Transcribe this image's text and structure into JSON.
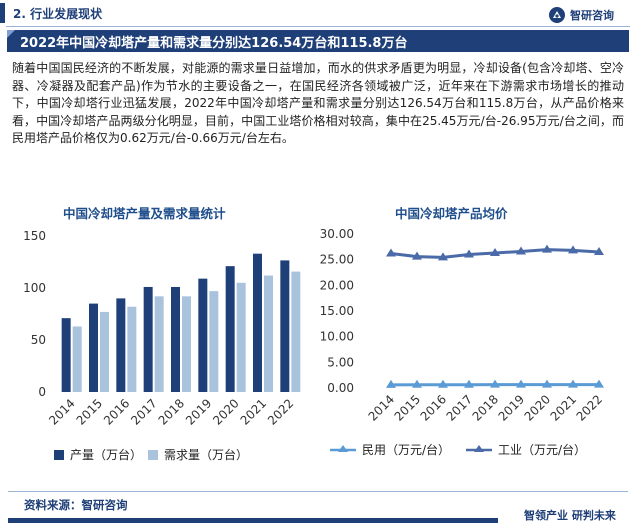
{
  "header": {
    "section_title": "2. 行业发展现状",
    "logo_text": "智研咨询"
  },
  "banner": {
    "title": "2022年中国冷却塔产量和需求量分别达126.54万台和115.8万台"
  },
  "paragraph": "随着中国国民经济的不断发展，对能源的需求量日益增加，而水的供求矛盾更为明显，冷却设备(包含冷却塔、空冷器、冷凝器及配套产品)作为节水的主要设备之一，在国民经济各领域被广泛，近年来在下游需求市场增长的推动下，中国冷却塔行业迅猛发展，2022年中国冷却塔产量和需求量分别达126.54万台和115.8万台，从产品价格来看，中国冷却塔产品两级分化明显，目前，中国工业塔价格相对较高，集中在25.45万元/台-26.95万元/台之间，而民用塔产品价格仅为0.62万元/台-0.66万元/台左右。",
  "footer": {
    "source": "资料来源：智研咨询",
    "tagline": "智领产业  研判未来"
  },
  "colors": {
    "brand": "#1f3f78",
    "production": "#1f3f78",
    "demand": "#a9c3dc",
    "civil": "#5b9bd5",
    "industrial": "#4a6aa8"
  },
  "chart_data": [
    {
      "type": "bar",
      "title": "中国冷却塔产量及需求量统计",
      "categories": [
        "2014",
        "2015",
        "2016",
        "2017",
        "2018",
        "2019",
        "2020",
        "2021",
        "2022"
      ],
      "series": [
        {
          "name": "产量（万台）",
          "values": [
            71,
            85,
            90,
            101,
            101,
            109,
            121,
            133,
            126.54
          ]
        },
        {
          "name": "需求量（万台）",
          "values": [
            63,
            77,
            82,
            92,
            92,
            97,
            105,
            112,
            115.8
          ]
        }
      ],
      "ylim": [
        0,
        150
      ],
      "yticks": [
        "0",
        "50",
        "100",
        "150"
      ],
      "grid": false,
      "legend": "bottom"
    },
    {
      "type": "line",
      "title": "中国冷却塔产品均价",
      "categories": [
        "2014",
        "2015",
        "2016",
        "2017",
        "2018",
        "2019",
        "2020",
        "2021",
        "2022"
      ],
      "series": [
        {
          "name": "民用（万元/台）",
          "values": [
            0.62,
            0.63,
            0.63,
            0.64,
            0.65,
            0.65,
            0.66,
            0.66,
            0.66
          ]
        },
        {
          "name": "工业（万元/台）",
          "values": [
            26.2,
            25.6,
            25.45,
            26.0,
            26.3,
            26.6,
            26.95,
            26.8,
            26.5
          ]
        }
      ],
      "ylim": [
        0,
        30
      ],
      "yticks": [
        "0.00",
        "5.00",
        "10.00",
        "15.00",
        "20.00",
        "25.00",
        "30.00"
      ],
      "grid": false,
      "legend": "bottom"
    }
  ]
}
